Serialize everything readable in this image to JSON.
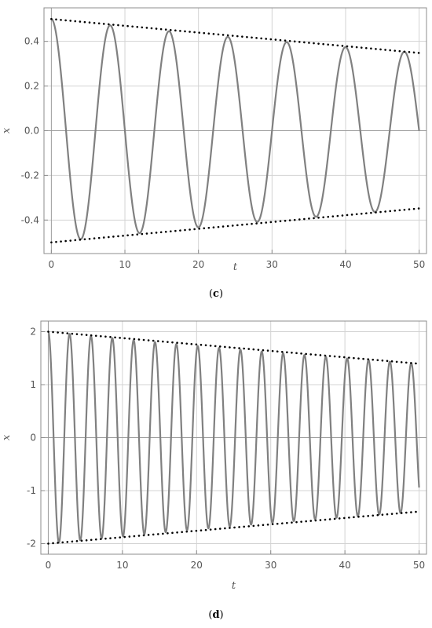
{
  "chart_data": [
    {
      "type": "line",
      "panel_label": "c",
      "xlabel": "t",
      "ylabel": "x",
      "xlim": [
        -1,
        51
      ],
      "ylim": [
        -0.55,
        0.55
      ],
      "xticks": [
        0,
        10,
        20,
        30,
        40,
        50
      ],
      "yticks": [
        -0.4,
        -0.2,
        0.0,
        0.2,
        0.4
      ],
      "ytick_labels": [
        "-0.4",
        "-0.2",
        "0.0",
        "0.2",
        "0.4"
      ],
      "grid": true,
      "series": [
        {
          "style": "solid",
          "color": "#808080",
          "formula": {
            "amplitude": 0.5,
            "decay": 0.00724,
            "angular_frequency": 0.7854,
            "phase": 0,
            "t_range": [
              0,
              50
            ]
          }
        },
        {
          "style": "dotted",
          "color": "#000000",
          "x": [
            0,
            50
          ],
          "y": [
            0.5,
            0.348
          ]
        },
        {
          "style": "dotted",
          "color": "#000000",
          "x": [
            0,
            50
          ],
          "y": [
            -0.5,
            -0.348
          ]
        }
      ]
    },
    {
      "type": "line",
      "panel_label": "d",
      "xlabel": "t",
      "ylabel": "x",
      "xlim": [
        -1,
        51
      ],
      "ylim": [
        -2.2,
        2.2
      ],
      "xticks": [
        0,
        10,
        20,
        30,
        40,
        50
      ],
      "yticks": [
        -2,
        -1,
        0,
        1,
        2
      ],
      "ytick_labels": [
        "-2",
        "-1",
        "0",
        "1",
        "2"
      ],
      "grid": true,
      "series": [
        {
          "style": "solid",
          "color": "#808080",
          "formula": {
            "amplitude": 2,
            "decay": 0.0072,
            "angular_frequency": 2.1825,
            "phase": 0,
            "t_range": [
              0,
              50
            ]
          }
        },
        {
          "style": "dotted",
          "color": "#000000",
          "x": [
            0,
            50
          ],
          "y": [
            2,
            1.395
          ]
        },
        {
          "style": "dotted",
          "color": "#000000",
          "x": [
            0,
            50
          ],
          "y": [
            -2,
            -1.395
          ]
        }
      ]
    }
  ]
}
